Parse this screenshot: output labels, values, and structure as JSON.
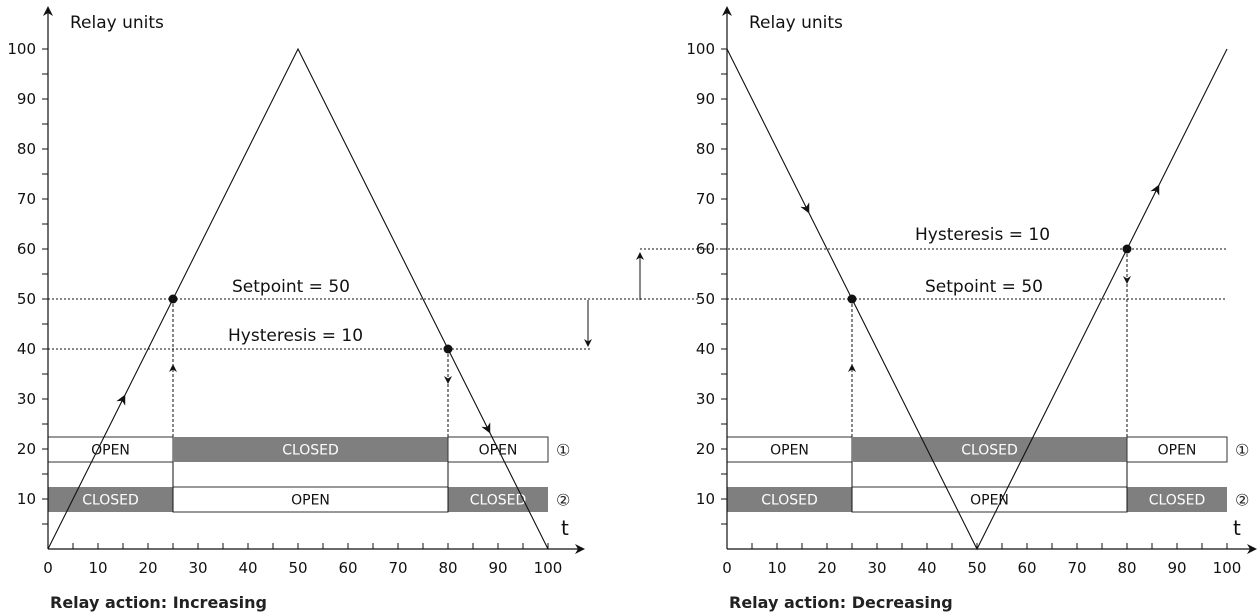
{
  "colors": {
    "closed_fill": "#7f7f7f",
    "open_fill": "#ffffff",
    "line": "#111111",
    "closed_text": "#ffffff",
    "open_text": "#111111"
  },
  "panels": [
    {
      "y_axis_label": "Relay units",
      "x_axis_label": "t",
      "caption": "Relay action: Increasing",
      "y_ticks": [
        "10",
        "20",
        "30",
        "40",
        "50",
        "60",
        "70",
        "80",
        "90",
        "100"
      ],
      "x_ticks": [
        "0",
        "10",
        "20",
        "30",
        "40",
        "50",
        "60",
        "70",
        "80",
        "90",
        "100"
      ],
      "setpoint_label": "Setpoint = 50",
      "hysteresis_label": "Hysteresis = 10",
      "signal": [
        [
          0,
          0
        ],
        [
          50,
          100
        ],
        [
          100,
          0
        ]
      ],
      "setpoint": 50,
      "threshold": 40,
      "switch_points": [
        25,
        80
      ],
      "relay1": [
        {
          "label": "OPEN",
          "state": "open",
          "x0": 0,
          "x1": 25
        },
        {
          "label": "CLOSED",
          "state": "closed",
          "x0": 25,
          "x1": 80
        },
        {
          "label": "OPEN",
          "state": "open",
          "x0": 80,
          "x1": 100
        }
      ],
      "relay2": [
        {
          "label": "CLOSED",
          "state": "closed",
          "x0": 0,
          "x1": 25
        },
        {
          "label": "OPEN",
          "state": "open",
          "x0": 25,
          "x1": 80
        },
        {
          "label": "CLOSED",
          "state": "closed",
          "x0": 80,
          "x1": 100
        }
      ],
      "relay1_marker": "①",
      "relay2_marker": "②"
    },
    {
      "y_axis_label": "Relay units",
      "x_axis_label": "t",
      "caption": "Relay action: Decreasing",
      "y_ticks": [
        "10",
        "20",
        "30",
        "40",
        "50",
        "60",
        "70",
        "80",
        "90",
        "100"
      ],
      "x_ticks": [
        "0",
        "10",
        "20",
        "30",
        "40",
        "50",
        "60",
        "70",
        "80",
        "90",
        "100"
      ],
      "setpoint_label": "Setpoint = 50",
      "hysteresis_label": "Hysteresis = 10",
      "signal": [
        [
          0,
          100
        ],
        [
          50,
          0
        ],
        [
          100,
          100
        ]
      ],
      "setpoint": 50,
      "threshold": 60,
      "switch_points": [
        25,
        80
      ],
      "relay1": [
        {
          "label": "OPEN",
          "state": "open",
          "x0": 0,
          "x1": 25
        },
        {
          "label": "CLOSED",
          "state": "closed",
          "x0": 25,
          "x1": 80
        },
        {
          "label": "OPEN",
          "state": "open",
          "x0": 80,
          "x1": 100
        }
      ],
      "relay2": [
        {
          "label": "CLOSED",
          "state": "closed",
          "x0": 0,
          "x1": 25
        },
        {
          "label": "OPEN",
          "state": "open",
          "x0": 25,
          "x1": 80
        },
        {
          "label": "CLOSED",
          "state": "closed",
          "x0": 80,
          "x1": 100
        }
      ],
      "relay1_marker": "①",
      "relay2_marker": "②"
    }
  ]
}
